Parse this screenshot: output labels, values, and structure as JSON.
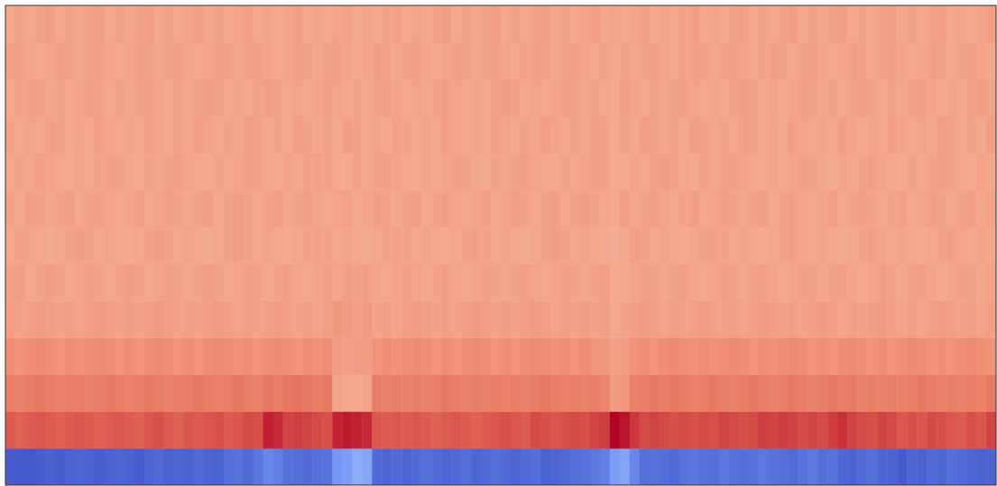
{
  "chart_data": {
    "type": "heatmap",
    "color": "coolwarm",
    "tick_labels": false,
    "color_range": [
      0,
      1
    ],
    "cells": [
      [
        0.04,
        0.03,
        0.03,
        0.04,
        0.05,
        0.04,
        0.05,
        0.06,
        0.05,
        0.04,
        0.05,
        0.06,
        0.05,
        0.04,
        0.06,
        0.07,
        0.05,
        0.06,
        0.05,
        0.07,
        0.06,
        0.05,
        0.08,
        0.09,
        0.07,
        0.1,
        0.14,
        0.12,
        0.09,
        0.08,
        0.07,
        0.08,
        0.09,
        0.18,
        0.2,
        0.24,
        0.22,
        0.07,
        0.06,
        0.07,
        0.06,
        0.07,
        0.08,
        0.07,
        0.06,
        0.07,
        0.08,
        0.06,
        0.07,
        0.08,
        0.07,
        0.06,
        0.07,
        0.08,
        0.05,
        0.06,
        0.07,
        0.08,
        0.09,
        0.1,
        0.12,
        0.2,
        0.22,
        0.14,
        0.08,
        0.09,
        0.08,
        0.07,
        0.09,
        0.1,
        0.09,
        0.08,
        0.1,
        0.09,
        0.08,
        0.09,
        0.1,
        0.09,
        0.08,
        0.07,
        0.09,
        0.1,
        0.08,
        0.09,
        0.06,
        0.05,
        0.07,
        0.08,
        0.06,
        0.05,
        0.04,
        0.06,
        0.05,
        0.07,
        0.06,
        0.08,
        0.07,
        0.06,
        0.05,
        0.06
      ],
      [
        0.87,
        0.86,
        0.87,
        0.88,
        0.87,
        0.86,
        0.87,
        0.88,
        0.87,
        0.86,
        0.87,
        0.88,
        0.87,
        0.86,
        0.88,
        0.89,
        0.87,
        0.86,
        0.88,
        0.87,
        0.88,
        0.89,
        0.87,
        0.88,
        0.9,
        0.89,
        0.96,
        0.95,
        0.91,
        0.92,
        0.91,
        0.9,
        0.89,
        0.96,
        0.97,
        0.96,
        0.95,
        0.88,
        0.87,
        0.88,
        0.87,
        0.88,
        0.87,
        0.86,
        0.87,
        0.88,
        0.87,
        0.86,
        0.87,
        0.88,
        0.89,
        0.88,
        0.87,
        0.9,
        0.89,
        0.88,
        0.89,
        0.9,
        0.89,
        0.91,
        0.92,
        1.0,
        0.98,
        0.93,
        0.9,
        0.91,
        0.9,
        0.89,
        0.9,
        0.89,
        0.9,
        0.89,
        0.91,
        0.9,
        0.89,
        0.9,
        0.92,
        0.91,
        0.92,
        0.91,
        0.9,
        0.91,
        0.9,
        0.92,
        0.94,
        0.91,
        0.9,
        0.89,
        0.91,
        0.9,
        0.88,
        0.89,
        0.88,
        0.9,
        0.89,
        0.88,
        0.87,
        0.89,
        0.88,
        0.91
      ],
      [
        0.81,
        0.8,
        0.81,
        0.82,
        0.81,
        0.8,
        0.81,
        0.81,
        0.8,
        0.81,
        0.82,
        0.81,
        0.8,
        0.81,
        0.82,
        0.81,
        0.8,
        0.81,
        0.81,
        0.82,
        0.81,
        0.8,
        0.81,
        0.82,
        0.81,
        0.8,
        0.82,
        0.81,
        0.82,
        0.83,
        0.82,
        0.81,
        0.82,
        0.72,
        0.71,
        0.71,
        0.72,
        0.81,
        0.8,
        0.81,
        0.8,
        0.81,
        0.8,
        0.81,
        0.82,
        0.81,
        0.8,
        0.81,
        0.8,
        0.81,
        0.8,
        0.81,
        0.8,
        0.81,
        0.82,
        0.81,
        0.8,
        0.81,
        0.8,
        0.81,
        0.79,
        0.74,
        0.75,
        0.8,
        0.81,
        0.82,
        0.81,
        0.82,
        0.81,
        0.8,
        0.81,
        0.82,
        0.81,
        0.8,
        0.81,
        0.82,
        0.81,
        0.8,
        0.81,
        0.82,
        0.81,
        0.8,
        0.81,
        0.82,
        0.81,
        0.82,
        0.8,
        0.81,
        0.8,
        0.81,
        0.8,
        0.81,
        0.82,
        0.81,
        0.8,
        0.81,
        0.8,
        0.81,
        0.8,
        0.82
      ],
      [
        0.77,
        0.76,
        0.77,
        0.78,
        0.77,
        0.76,
        0.77,
        0.76,
        0.77,
        0.78,
        0.77,
        0.76,
        0.77,
        0.76,
        0.77,
        0.78,
        0.77,
        0.76,
        0.77,
        0.76,
        0.77,
        0.78,
        0.77,
        0.76,
        0.77,
        0.76,
        0.77,
        0.78,
        0.77,
        0.76,
        0.77,
        0.76,
        0.77,
        0.74,
        0.73,
        0.74,
        0.74,
        0.76,
        0.77,
        0.76,
        0.77,
        0.78,
        0.77,
        0.76,
        0.77,
        0.76,
        0.77,
        0.78,
        0.77,
        0.76,
        0.77,
        0.76,
        0.77,
        0.78,
        0.77,
        0.76,
        0.77,
        0.76,
        0.77,
        0.76,
        0.75,
        0.73,
        0.74,
        0.76,
        0.77,
        0.76,
        0.77,
        0.78,
        0.77,
        0.76,
        0.77,
        0.76,
        0.77,
        0.78,
        0.77,
        0.76,
        0.77,
        0.76,
        0.77,
        0.78,
        0.77,
        0.76,
        0.77,
        0.76,
        0.77,
        0.78,
        0.77,
        0.76,
        0.77,
        0.76,
        0.77,
        0.78,
        0.77,
        0.76,
        0.77,
        0.76,
        0.77,
        0.78,
        0.77,
        0.76
      ],
      [
        0.73,
        0.72,
        0.73,
        0.74,
        0.73,
        0.72,
        0.73,
        0.72,
        0.73,
        0.74,
        0.73,
        0.72,
        0.73,
        0.72,
        0.73,
        0.74,
        0.73,
        0.72,
        0.73,
        0.72,
        0.73,
        0.74,
        0.73,
        0.72,
        0.73,
        0.72,
        0.73,
        0.74,
        0.73,
        0.72,
        0.73,
        0.72,
        0.73,
        0.75,
        0.74,
        0.73,
        0.74,
        0.72,
        0.73,
        0.72,
        0.73,
        0.74,
        0.73,
        0.72,
        0.73,
        0.72,
        0.73,
        0.74,
        0.73,
        0.72,
        0.73,
        0.72,
        0.73,
        0.74,
        0.73,
        0.72,
        0.73,
        0.72,
        0.73,
        0.72,
        0.73,
        0.71,
        0.72,
        0.73,
        0.74,
        0.73,
        0.72,
        0.73,
        0.72,
        0.73,
        0.74,
        0.73,
        0.72,
        0.73,
        0.72,
        0.73,
        0.74,
        0.73,
        0.72,
        0.73,
        0.72,
        0.73,
        0.74,
        0.73,
        0.72,
        0.73,
        0.72,
        0.73,
        0.74,
        0.73,
        0.72,
        0.73,
        0.72,
        0.73,
        0.74,
        0.73,
        0.72,
        0.73,
        0.72,
        0.73
      ],
      [
        0.72,
        0.73,
        0.71,
        0.72,
        0.73,
        0.72,
        0.71,
        0.72,
        0.73,
        0.72,
        0.71,
        0.72,
        0.73,
        0.72,
        0.71,
        0.72,
        0.73,
        0.72,
        0.71,
        0.72,
        0.73,
        0.72,
        0.71,
        0.72,
        0.73,
        0.72,
        0.71,
        0.72,
        0.73,
        0.72,
        0.71,
        0.72,
        0.73,
        0.72,
        0.73,
        0.72,
        0.73,
        0.72,
        0.71,
        0.72,
        0.73,
        0.72,
        0.71,
        0.72,
        0.73,
        0.72,
        0.71,
        0.72,
        0.73,
        0.72,
        0.71,
        0.72,
        0.73,
        0.72,
        0.71,
        0.72,
        0.73,
        0.72,
        0.71,
        0.72,
        0.73,
        0.7,
        0.71,
        0.72,
        0.73,
        0.72,
        0.71,
        0.72,
        0.73,
        0.72,
        0.71,
        0.72,
        0.73,
        0.72,
        0.71,
        0.72,
        0.73,
        0.72,
        0.71,
        0.72,
        0.73,
        0.72,
        0.71,
        0.72,
        0.73,
        0.72,
        0.71,
        0.72,
        0.73,
        0.72,
        0.71,
        0.72,
        0.73,
        0.72,
        0.71,
        0.72,
        0.73,
        0.72,
        0.71,
        0.72
      ],
      [
        0.71,
        0.72,
        0.72,
        0.71,
        0.7,
        0.71,
        0.72,
        0.73,
        0.72,
        0.71,
        0.72,
        0.71,
        0.7,
        0.71,
        0.72,
        0.73,
        0.72,
        0.71,
        0.72,
        0.71,
        0.7,
        0.71,
        0.72,
        0.73,
        0.72,
        0.71,
        0.72,
        0.71,
        0.7,
        0.71,
        0.72,
        0.73,
        0.72,
        0.71,
        0.72,
        0.71,
        0.7,
        0.71,
        0.72,
        0.73,
        0.72,
        0.71,
        0.72,
        0.71,
        0.7,
        0.71,
        0.72,
        0.73,
        0.72,
        0.71,
        0.72,
        0.71,
        0.7,
        0.71,
        0.72,
        0.73,
        0.72,
        0.71,
        0.72,
        0.71,
        0.7,
        0.69,
        0.71,
        0.73,
        0.72,
        0.71,
        0.72,
        0.71,
        0.7,
        0.71,
        0.72,
        0.73,
        0.72,
        0.71,
        0.72,
        0.71,
        0.7,
        0.71,
        0.72,
        0.73,
        0.72,
        0.71,
        0.72,
        0.71,
        0.7,
        0.71,
        0.72,
        0.73,
        0.72,
        0.71,
        0.72,
        0.71,
        0.7,
        0.71,
        0.72,
        0.73,
        0.72,
        0.71,
        0.72,
        0.71
      ],
      [
        0.72,
        0.71,
        0.73,
        0.72,
        0.71,
        0.72,
        0.73,
        0.71,
        0.72,
        0.73,
        0.72,
        0.71,
        0.72,
        0.73,
        0.71,
        0.72,
        0.73,
        0.72,
        0.71,
        0.72,
        0.73,
        0.71,
        0.72,
        0.73,
        0.72,
        0.71,
        0.72,
        0.73,
        0.71,
        0.72,
        0.73,
        0.72,
        0.71,
        0.72,
        0.73,
        0.71,
        0.72,
        0.73,
        0.72,
        0.71,
        0.72,
        0.73,
        0.71,
        0.72,
        0.73,
        0.72,
        0.71,
        0.72,
        0.73,
        0.71,
        0.72,
        0.73,
        0.72,
        0.71,
        0.72,
        0.73,
        0.71,
        0.72,
        0.73,
        0.72,
        0.71,
        0.7,
        0.73,
        0.71,
        0.72,
        0.73,
        0.72,
        0.71,
        0.72,
        0.73,
        0.71,
        0.72,
        0.73,
        0.72,
        0.71,
        0.72,
        0.73,
        0.71,
        0.72,
        0.73,
        0.72,
        0.71,
        0.72,
        0.73,
        0.71,
        0.72,
        0.73,
        0.72,
        0.71,
        0.72,
        0.73,
        0.71,
        0.72,
        0.73,
        0.72,
        0.71,
        0.72,
        0.73,
        0.71,
        0.72
      ],
      [
        0.71,
        0.72,
        0.71,
        0.73,
        0.72,
        0.71,
        0.7,
        0.72,
        0.71,
        0.72,
        0.73,
        0.72,
        0.71,
        0.7,
        0.72,
        0.71,
        0.72,
        0.73,
        0.72,
        0.71,
        0.7,
        0.72,
        0.71,
        0.72,
        0.73,
        0.72,
        0.71,
        0.7,
        0.72,
        0.71,
        0.72,
        0.73,
        0.72,
        0.71,
        0.7,
        0.72,
        0.71,
        0.72,
        0.73,
        0.72,
        0.71,
        0.7,
        0.72,
        0.71,
        0.72,
        0.73,
        0.72,
        0.71,
        0.7,
        0.72,
        0.71,
        0.72,
        0.73,
        0.72,
        0.71,
        0.7,
        0.72,
        0.71,
        0.72,
        0.73,
        0.72,
        0.7,
        0.7,
        0.72,
        0.71,
        0.72,
        0.73,
        0.72,
        0.71,
        0.7,
        0.72,
        0.71,
        0.72,
        0.73,
        0.72,
        0.71,
        0.7,
        0.72,
        0.71,
        0.72,
        0.73,
        0.72,
        0.71,
        0.7,
        0.72,
        0.71,
        0.72,
        0.73,
        0.72,
        0.71,
        0.7,
        0.72,
        0.71,
        0.72,
        0.73,
        0.72,
        0.71,
        0.7,
        0.72,
        0.71
      ],
      [
        0.72,
        0.71,
        0.72,
        0.71,
        0.73,
        0.72,
        0.71,
        0.72,
        0.71,
        0.73,
        0.72,
        0.71,
        0.72,
        0.71,
        0.73,
        0.72,
        0.71,
        0.72,
        0.71,
        0.73,
        0.72,
        0.71,
        0.72,
        0.71,
        0.73,
        0.72,
        0.71,
        0.72,
        0.71,
        0.73,
        0.72,
        0.71,
        0.72,
        0.71,
        0.73,
        0.72,
        0.71,
        0.72,
        0.71,
        0.73,
        0.72,
        0.71,
        0.72,
        0.71,
        0.73,
        0.72,
        0.71,
        0.72,
        0.71,
        0.73,
        0.72,
        0.71,
        0.72,
        0.71,
        0.73,
        0.72,
        0.71,
        0.72,
        0.71,
        0.73,
        0.72,
        0.7,
        0.72,
        0.71,
        0.73,
        0.72,
        0.71,
        0.72,
        0.71,
        0.73,
        0.72,
        0.71,
        0.72,
        0.71,
        0.73,
        0.72,
        0.71,
        0.72,
        0.71,
        0.73,
        0.72,
        0.71,
        0.72,
        0.71,
        0.73,
        0.72,
        0.71,
        0.72,
        0.71,
        0.73,
        0.72,
        0.71,
        0.72,
        0.71,
        0.73,
        0.72,
        0.71,
        0.72,
        0.71,
        0.73
      ],
      [
        0.71,
        0.72,
        0.73,
        0.72,
        0.71,
        0.72,
        0.71,
        0.72,
        0.73,
        0.72,
        0.71,
        0.72,
        0.71,
        0.72,
        0.73,
        0.72,
        0.71,
        0.72,
        0.71,
        0.72,
        0.73,
        0.72,
        0.71,
        0.72,
        0.71,
        0.72,
        0.73,
        0.72,
        0.71,
        0.72,
        0.71,
        0.72,
        0.73,
        0.72,
        0.71,
        0.72,
        0.71,
        0.72,
        0.73,
        0.72,
        0.71,
        0.72,
        0.71,
        0.72,
        0.73,
        0.72,
        0.71,
        0.72,
        0.71,
        0.72,
        0.73,
        0.72,
        0.71,
        0.72,
        0.71,
        0.72,
        0.73,
        0.72,
        0.71,
        0.72,
        0.71,
        0.7,
        0.73,
        0.72,
        0.71,
        0.72,
        0.71,
        0.72,
        0.73,
        0.72,
        0.71,
        0.72,
        0.71,
        0.72,
        0.73,
        0.72,
        0.71,
        0.72,
        0.71,
        0.72,
        0.73,
        0.72,
        0.71,
        0.72,
        0.71,
        0.72,
        0.73,
        0.72,
        0.71,
        0.72,
        0.71,
        0.72,
        0.73,
        0.72,
        0.71,
        0.72,
        0.71,
        0.72,
        0.73,
        0.72
      ],
      [
        0.72,
        0.73,
        0.72,
        0.71,
        0.72,
        0.73,
        0.72,
        0.71,
        0.72,
        0.73,
        0.72,
        0.71,
        0.72,
        0.73,
        0.72,
        0.71,
        0.72,
        0.73,
        0.72,
        0.71,
        0.72,
        0.73,
        0.72,
        0.71,
        0.72,
        0.73,
        0.72,
        0.71,
        0.72,
        0.73,
        0.72,
        0.71,
        0.72,
        0.73,
        0.72,
        0.71,
        0.72,
        0.73,
        0.72,
        0.71,
        0.72,
        0.73,
        0.72,
        0.71,
        0.72,
        0.73,
        0.72,
        0.71,
        0.72,
        0.73,
        0.72,
        0.71,
        0.72,
        0.73,
        0.72,
        0.71,
        0.72,
        0.73,
        0.72,
        0.71,
        0.72,
        0.71,
        0.72,
        0.71,
        0.72,
        0.73,
        0.72,
        0.71,
        0.72,
        0.73,
        0.72,
        0.71,
        0.72,
        0.73,
        0.72,
        0.71,
        0.72,
        0.73,
        0.72,
        0.71,
        0.72,
        0.73,
        0.72,
        0.71,
        0.72,
        0.73,
        0.72,
        0.71,
        0.72,
        0.73,
        0.72,
        0.71,
        0.72,
        0.73,
        0.72,
        0.71,
        0.72,
        0.73,
        0.72,
        0.71
      ],
      [
        0.71,
        0.72,
        0.71,
        0.72,
        0.73,
        0.71,
        0.72,
        0.71,
        0.72,
        0.73,
        0.71,
        0.72,
        0.71,
        0.72,
        0.73,
        0.71,
        0.72,
        0.71,
        0.72,
        0.73,
        0.71,
        0.72,
        0.71,
        0.72,
        0.73,
        0.71,
        0.72,
        0.71,
        0.72,
        0.73,
        0.71,
        0.72,
        0.71,
        0.72,
        0.73,
        0.71,
        0.72,
        0.71,
        0.72,
        0.73,
        0.71,
        0.72,
        0.71,
        0.72,
        0.73,
        0.71,
        0.72,
        0.71,
        0.72,
        0.73,
        0.71,
        0.72,
        0.71,
        0.72,
        0.73,
        0.71,
        0.72,
        0.71,
        0.72,
        0.73,
        0.71,
        0.72,
        0.71,
        0.72,
        0.73,
        0.71,
        0.72,
        0.71,
        0.72,
        0.73,
        0.71,
        0.72,
        0.71,
        0.72,
        0.73,
        0.71,
        0.72,
        0.71,
        0.72,
        0.73,
        0.71,
        0.72,
        0.71,
        0.72,
        0.73,
        0.71,
        0.72,
        0.71,
        0.72,
        0.73,
        0.71,
        0.72,
        0.71,
        0.72,
        0.73,
        0.71,
        0.72,
        0.71,
        0.72,
        0.73
      ]
    ]
  }
}
